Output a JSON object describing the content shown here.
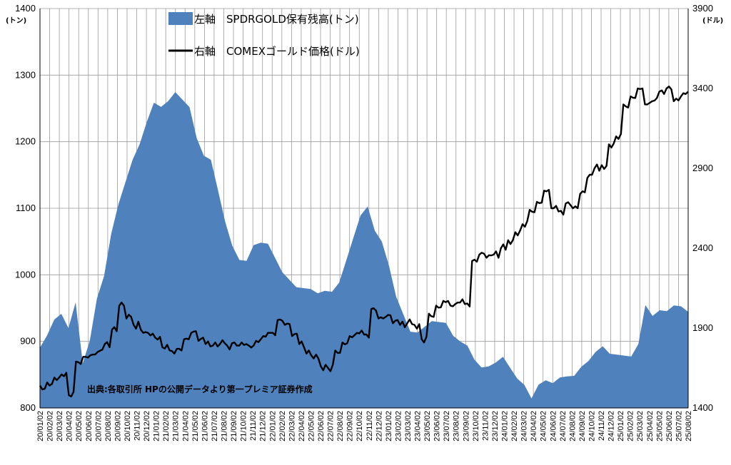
{
  "chart_data": {
    "type": "area",
    "left_axis": {
      "unit": "(トン)",
      "ylim": [
        800,
        1400
      ],
      "ticks": [
        "800",
        "900",
        "1000",
        "1100",
        "1200",
        "1300",
        "1400"
      ]
    },
    "right_axis": {
      "unit": "(ドル)",
      "ylim": [
        1400,
        3900
      ],
      "ticks": [
        "1400",
        "1900",
        "2400",
        "2900",
        "3400",
        "3900"
      ]
    },
    "x_ticks": [
      "20/01/02",
      "20/02/02",
      "20/03/02",
      "20/04/02",
      "20/05/02",
      "20/06/02",
      "20/07/02",
      "20/08/02",
      "20/09/02",
      "20/10/02",
      "20/11/02",
      "20/12/02",
      "21/01/02",
      "21/02/02",
      "21/03/02",
      "21/04/02",
      "21/05/02",
      "21/06/02",
      "21/07/02",
      "21/08/02",
      "21/09/02",
      "21/10/02",
      "21/11/02",
      "21/12/02",
      "22/01/02",
      "22/02/02",
      "22/03/02",
      "22/04/02",
      "22/05/02",
      "22/06/02",
      "22/07/02",
      "22/08/02",
      "22/09/02",
      "22/10/02",
      "22/11/02",
      "22/12/02",
      "23/01/02",
      "23/02/02",
      "23/03/02",
      "23/04/02",
      "23/05/02",
      "23/06/02",
      "23/07/02",
      "23/08/02",
      "23/09/02",
      "23/10/02",
      "23/11/02",
      "23/12/02",
      "24/01/02",
      "24/02/02",
      "24/03/02",
      "24/04/02",
      "24/05/02",
      "24/06/02",
      "24/07/02",
      "24/08/02",
      "24/09/02",
      "24/10/02",
      "24/11/02",
      "24/12/02",
      "25/01/02",
      "25/02/02",
      "25/03/02",
      "25/04/02",
      "25/05/02",
      "25/06/02",
      "25/07/02",
      "25/08/02"
    ],
    "grid": true,
    "legend_placement": "top-center",
    "colors": {
      "holdings": "#4f81bd",
      "price": "#000000"
    },
    "series": [
      {
        "name": "左軸　SPDRGOLD保有残高(トン)",
        "axis": "left",
        "type": "area",
        "values": [
          895,
          910,
          930,
          945,
          920,
          955,
          870,
          900,
          960,
          1000,
          1060,
          1110,
          1140,
          1170,
          1200,
          1230,
          1255,
          1255,
          1260,
          1270,
          1265,
          1250,
          1210,
          1180,
          1170,
          1130,
          1080,
          1040,
          1025,
          1020,
          1040,
          1050,
          1045,
          1030,
          1005,
          990,
          985,
          980,
          975,
          975,
          975,
          970,
          990,
          1020,
          1060,
          1090,
          1100,
          1070,
          1050,
          1010,
          970,
          940,
          910,
          915,
          920,
          935,
          930,
          925,
          912,
          900,
          890,
          875,
          860,
          858,
          870,
          875,
          865,
          845,
          832,
          818,
          835,
          838,
          840,
          845,
          843,
          850,
          860,
          875,
          885,
          890,
          885,
          880,
          875,
          880,
          895,
          950,
          940,
          945,
          950,
          955,
          950,
          948
        ]
      },
      {
        "name": "右軸　COMEXゴールド価格(ドル)",
        "axis": "right",
        "type": "line",
        "values": [
          1540,
          1560,
          1590,
          1610,
          1480,
          1690,
          1720,
          1730,
          1750,
          1800,
          1890,
          2040,
          1960,
          1920,
          1890,
          1870,
          1840,
          1780,
          1760,
          1770,
          1830,
          1870,
          1820,
          1800,
          1790,
          1800,
          1790,
          1810,
          1810,
          1790,
          1820,
          1850,
          1870,
          1950,
          1920,
          1850,
          1800,
          1740,
          1710,
          1660,
          1650,
          1760,
          1810,
          1850,
          1870,
          1860,
          2020,
          1960,
          1970,
          1930,
          1920,
          1930,
          1920,
          1830,
          1990,
          2040,
          2070,
          2040,
          2060,
          2050,
          2320,
          2360,
          2340,
          2360,
          2400,
          2450,
          2500,
          2550,
          2640,
          2690,
          2760,
          2650,
          2630,
          2680,
          2650,
          2740,
          2840,
          2900,
          2920,
          3050,
          3100,
          3300,
          3350,
          3400,
          3300,
          3320,
          3380,
          3400,
          3320,
          3350,
          3380
        ]
      }
    ],
    "source_note": "出典:各取引所 HPの公開データより第一プレミア証券作成"
  }
}
